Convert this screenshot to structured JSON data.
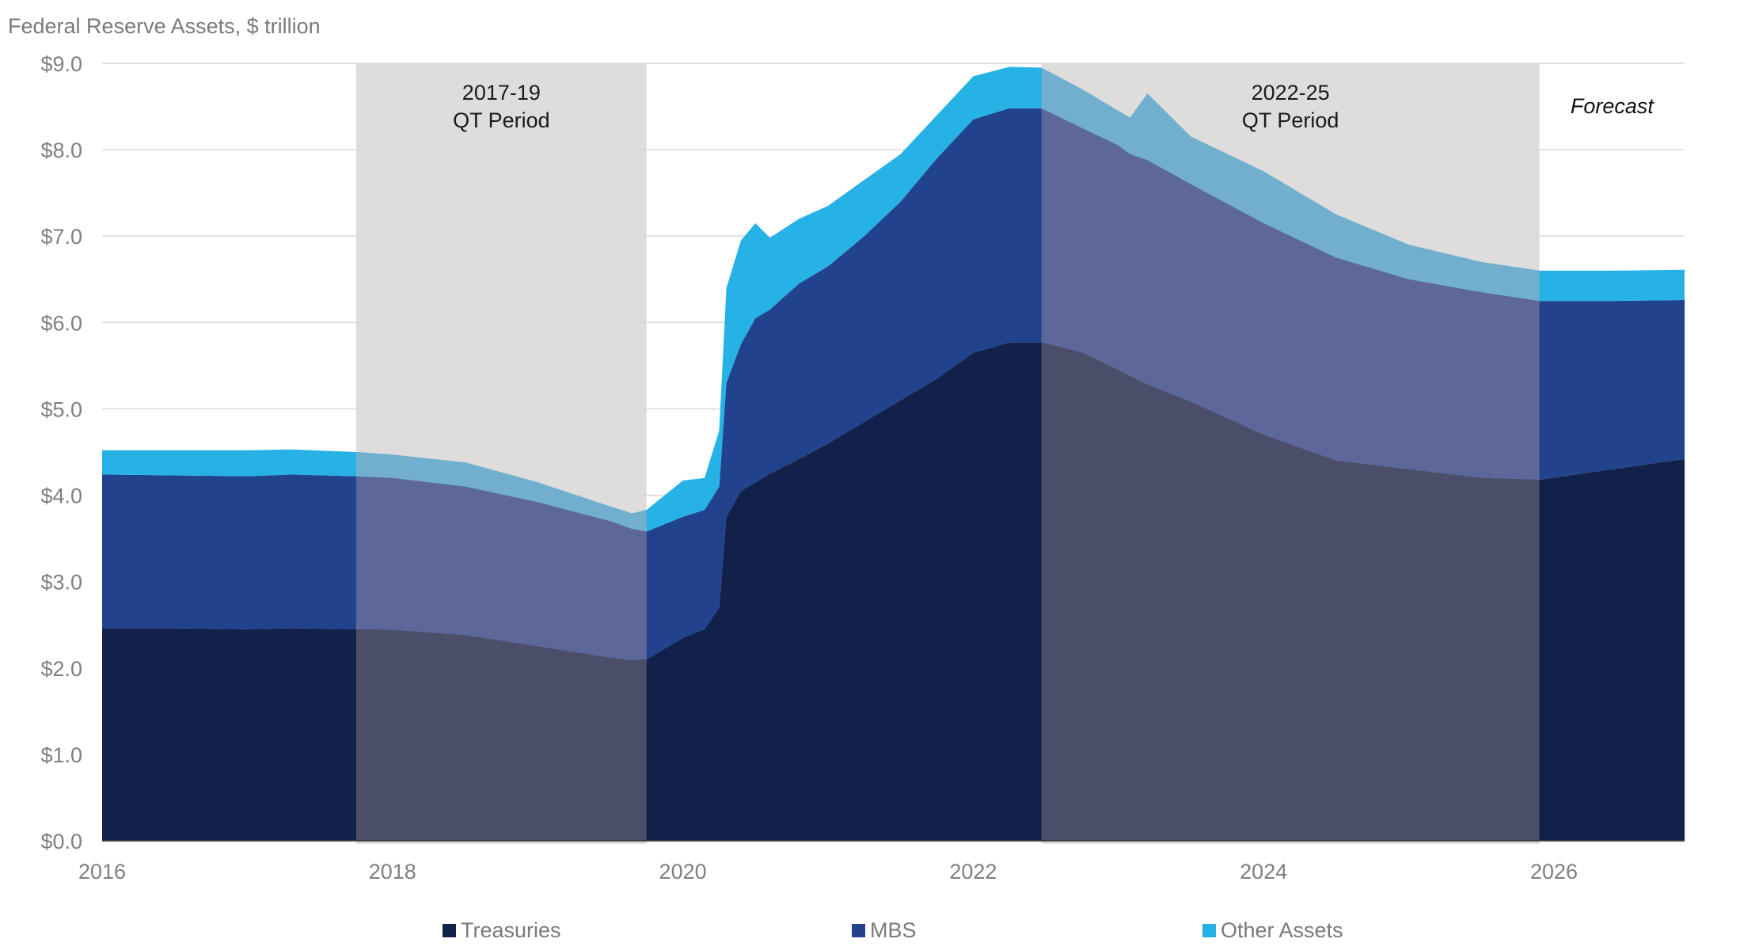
{
  "chart_data": {
    "type": "area",
    "title": "Federal Reserve Assets, $ trillion",
    "xlabel": "",
    "ylabel": "",
    "xlim": [
      2016,
      2026.9
    ],
    "ylim": [
      0,
      9
    ],
    "grid": true,
    "stacked": true,
    "x_ticks": [
      2016,
      2018,
      2020,
      2022,
      2024,
      2026
    ],
    "x_tick_labels": [
      "2016",
      "2018",
      "2020",
      "2022",
      "2024",
      "2026"
    ],
    "y_ticks": [
      0,
      1,
      2,
      3,
      4,
      5,
      6,
      7,
      8,
      9
    ],
    "y_tick_labels": [
      "$0.0",
      "$1.0",
      "$2.0",
      "$3.0",
      "$4.0",
      "$5.0",
      "$6.0",
      "$7.0",
      "$8.0",
      "$9.0"
    ],
    "x": [
      2016.0,
      2016.5,
      2017.0,
      2017.3,
      2017.75,
      2018.0,
      2018.5,
      2019.0,
      2019.5,
      2019.65,
      2019.75,
      2020.0,
      2020.15,
      2020.25,
      2020.3,
      2020.4,
      2020.5,
      2020.6,
      2020.8,
      2021.0,
      2021.25,
      2021.5,
      2021.75,
      2022.0,
      2022.25,
      2022.47,
      2022.75,
      2023.0,
      2023.08,
      2023.2,
      2023.5,
      2024.0,
      2024.25,
      2024.5,
      2025.0,
      2025.5,
      2025.9,
      2026.4,
      2026.9
    ],
    "series": [
      {
        "name": "Treasuries",
        "color": "#11214a",
        "values": [
          2.46,
          2.46,
          2.45,
          2.46,
          2.45,
          2.44,
          2.38,
          2.25,
          2.12,
          2.09,
          2.1,
          2.35,
          2.45,
          2.7,
          3.75,
          4.05,
          4.15,
          4.25,
          4.42,
          4.6,
          4.85,
          5.1,
          5.35,
          5.65,
          5.77,
          5.77,
          5.65,
          5.45,
          5.38,
          5.28,
          5.08,
          4.7,
          4.55,
          4.4,
          4.3,
          4.2,
          4.18,
          4.3,
          4.42
        ]
      },
      {
        "name": "MBS",
        "color": "#21428d",
        "values": [
          1.78,
          1.77,
          1.77,
          1.78,
          1.77,
          1.76,
          1.72,
          1.67,
          1.58,
          1.52,
          1.48,
          1.4,
          1.38,
          1.4,
          1.55,
          1.7,
          1.9,
          1.9,
          2.03,
          2.05,
          2.15,
          2.3,
          2.55,
          2.7,
          2.71,
          2.71,
          2.6,
          2.6,
          2.57,
          2.6,
          2.52,
          2.45,
          2.4,
          2.35,
          2.2,
          2.15,
          2.07,
          1.95,
          1.84
        ]
      },
      {
        "name": "Other Assets",
        "color": "#27b2e6",
        "values": [
          0.28,
          0.29,
          0.3,
          0.29,
          0.28,
          0.27,
          0.28,
          0.23,
          0.17,
          0.18,
          0.25,
          0.42,
          0.37,
          0.65,
          1.1,
          1.2,
          1.1,
          0.83,
          0.75,
          0.7,
          0.65,
          0.55,
          0.5,
          0.5,
          0.48,
          0.47,
          0.45,
          0.4,
          0.42,
          0.77,
          0.55,
          0.6,
          0.55,
          0.5,
          0.4,
          0.35,
          0.35,
          0.35,
          0.35
        ]
      }
    ],
    "shaded_regions": [
      {
        "label_line1": "2017-19",
        "label_line2": "QT Period",
        "x_start": 2017.75,
        "x_end": 2019.75
      },
      {
        "label_line1": "2022-25",
        "label_line2": "QT Period",
        "x_start": 2022.47,
        "x_end": 2025.9
      }
    ],
    "annotations": [
      {
        "text": "Forecast",
        "style": "italic",
        "x_start": 2025.9
      }
    ],
    "legend": {
      "placement": "bottom",
      "entries": [
        "Treasuries",
        "MBS",
        "Other Assets"
      ]
    }
  },
  "colors": {
    "shade": "#dedddc",
    "shade_overlay_treasuries": "#4a4e69",
    "shade_overlay_mbs": "#5e6799",
    "shade_overlay_other": "#72afcf",
    "grid": "#d9d9d9",
    "axis_text": "#7f7f7f"
  }
}
